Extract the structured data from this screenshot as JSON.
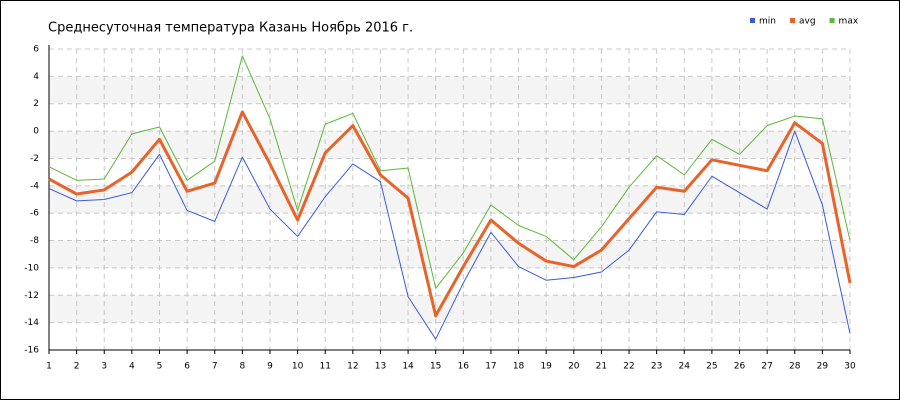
{
  "chart_data": {
    "type": "line",
    "title": "Среднесуточная температура Казань  Ноябрь 2016 г.",
    "x": [
      1,
      2,
      3,
      4,
      5,
      6,
      7,
      8,
      9,
      10,
      11,
      12,
      13,
      14,
      15,
      16,
      17,
      18,
      19,
      20,
      21,
      22,
      23,
      24,
      25,
      26,
      27,
      28,
      29,
      30
    ],
    "xlim": [
      1,
      30
    ],
    "xticks": [
      1,
      2,
      3,
      4,
      5,
      6,
      7,
      8,
      9,
      10,
      11,
      12,
      13,
      14,
      15,
      16,
      17,
      18,
      19,
      20,
      21,
      22,
      23,
      24,
      25,
      26,
      27,
      28,
      29,
      30
    ],
    "ylim": [
      -16,
      6
    ],
    "yticks": [
      -16,
      -14,
      -12,
      -10,
      -8,
      -6,
      -4,
      -2,
      0,
      2,
      4,
      6
    ],
    "grid": true,
    "legend": "top-right",
    "series": [
      {
        "name": "min",
        "color": "#3a5bd9",
        "width": 1,
        "values": [
          -4.2,
          -5.1,
          -5.0,
          -4.5,
          -1.7,
          -5.8,
          -6.6,
          -1.9,
          -5.7,
          -7.7,
          -4.8,
          -2.4,
          -3.7,
          -12.1,
          -15.2,
          -11.1,
          -7.4,
          -9.9,
          -10.9,
          -10.7,
          -10.3,
          -8.7,
          -5.9,
          -6.1,
          -3.3,
          -4.5,
          -5.7,
          0.0,
          -5.4,
          -14.8
        ]
      },
      {
        "name": "avg",
        "color": "#e8632a",
        "width": 3,
        "values": [
          -3.5,
          -4.6,
          -4.3,
          -3.0,
          -0.6,
          -4.4,
          -3.8,
          1.4,
          -2.4,
          -6.5,
          -1.6,
          0.4,
          -3.2,
          -4.9,
          -13.5,
          -9.9,
          -6.5,
          -8.2,
          -9.5,
          -9.9,
          -8.7,
          -6.4,
          -4.1,
          -4.4,
          -2.1,
          -2.5,
          -2.9,
          0.6,
          -0.9,
          -11.1
        ]
      },
      {
        "name": "max",
        "color": "#5cb83a",
        "width": 1,
        "values": [
          -2.6,
          -3.6,
          -3.5,
          -0.2,
          0.3,
          -3.6,
          -2.2,
          5.5,
          0.9,
          -5.8,
          0.5,
          1.3,
          -2.9,
          -2.7,
          -11.5,
          -8.9,
          -5.4,
          -6.9,
          -7.7,
          -9.4,
          -7.0,
          -4.1,
          -1.8,
          -3.2,
          -0.6,
          -1.7,
          0.4,
          1.1,
          0.9,
          -8.0
        ]
      }
    ]
  }
}
